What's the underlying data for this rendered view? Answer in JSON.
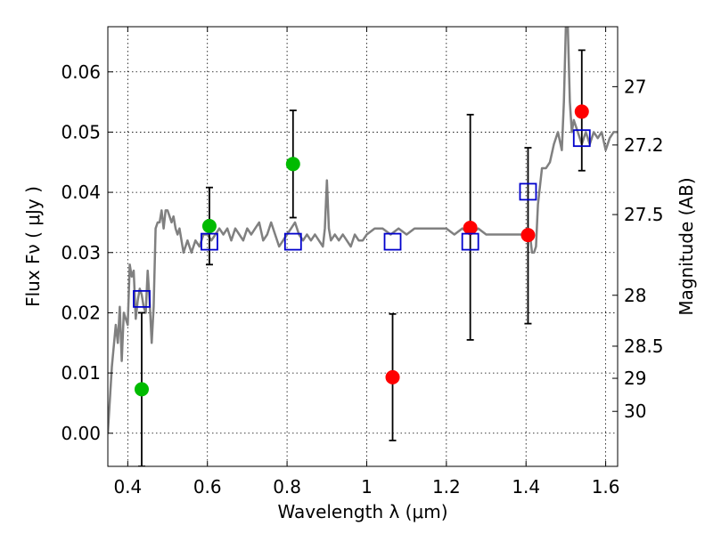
{
  "chart_data": {
    "type": "scatter",
    "xlabel": "Wavelength  λ (μm)",
    "ylabel": "Flux  Fν  ( μJy )",
    "ylabel_right": "Magnitude (AB)",
    "xlim": [
      0.35,
      1.63
    ],
    "ylim": [
      -0.0055,
      0.0675
    ],
    "x_ticks": [
      0.4,
      0.6,
      0.8,
      1.0,
      1.2,
      1.4,
      1.6
    ],
    "x_tick_labels": [
      "0.4",
      "0.6",
      "0.8",
      "1",
      "1.2",
      "1.4",
      "1.6"
    ],
    "y_ticks": [
      0.0,
      0.01,
      0.02,
      0.03,
      0.04,
      0.05,
      0.06
    ],
    "y_tick_labels": [
      "0.00",
      "0.01",
      "0.02",
      "0.03",
      "0.04",
      "0.05",
      "0.06"
    ],
    "right_axis_ticks": [
      {
        "mag": 27,
        "label": "27"
      },
      {
        "mag": 27.2,
        "label": "27.2"
      },
      {
        "mag": 27.5,
        "label": "27.5"
      },
      {
        "mag": 28,
        "label": "28"
      },
      {
        "mag": 28.5,
        "label": "28.5"
      },
      {
        "mag": 29,
        "label": "29"
      },
      {
        "mag": 30,
        "label": "30"
      }
    ],
    "grid": true,
    "colors": {
      "template": "#808080",
      "green": "#00bb00",
      "red": "#ff0000",
      "model": "#0000cc",
      "errorbar": "#000000"
    },
    "series": [
      {
        "kind": "template_spectrum",
        "style": "line",
        "x": [
          0.35,
          0.36,
          0.37,
          0.375,
          0.38,
          0.385,
          0.39,
          0.395,
          0.4,
          0.405,
          0.41,
          0.415,
          0.42,
          0.425,
          0.43,
          0.435,
          0.44,
          0.445,
          0.45,
          0.455,
          0.46,
          0.465,
          0.47,
          0.475,
          0.48,
          0.485,
          0.49,
          0.495,
          0.5,
          0.505,
          0.51,
          0.515,
          0.52,
          0.525,
          0.53,
          0.54,
          0.55,
          0.56,
          0.57,
          0.58,
          0.59,
          0.6,
          0.61,
          0.62,
          0.63,
          0.64,
          0.65,
          0.66,
          0.67,
          0.68,
          0.69,
          0.7,
          0.71,
          0.72,
          0.73,
          0.74,
          0.75,
          0.76,
          0.77,
          0.78,
          0.79,
          0.8,
          0.81,
          0.82,
          0.83,
          0.84,
          0.85,
          0.86,
          0.87,
          0.88,
          0.89,
          0.895,
          0.9,
          0.905,
          0.91,
          0.92,
          0.93,
          0.94,
          0.95,
          0.96,
          0.97,
          0.98,
          0.99,
          1.0,
          1.02,
          1.04,
          1.06,
          1.08,
          1.1,
          1.12,
          1.14,
          1.16,
          1.18,
          1.2,
          1.22,
          1.24,
          1.26,
          1.28,
          1.3,
          1.32,
          1.34,
          1.36,
          1.38,
          1.4,
          1.41,
          1.415,
          1.42,
          1.425,
          1.43,
          1.44,
          1.45,
          1.46,
          1.47,
          1.48,
          1.49,
          1.495,
          1.5,
          1.505,
          1.51,
          1.515,
          1.52,
          1.53,
          1.54,
          1.55,
          1.56,
          1.57,
          1.58,
          1.59,
          1.6,
          1.61,
          1.62,
          1.63
        ],
        "y": [
          0.0,
          0.011,
          0.018,
          0.015,
          0.021,
          0.012,
          0.02,
          0.019,
          0.018,
          0.028,
          0.026,
          0.027,
          0.019,
          0.022,
          0.024,
          0.023,
          0.021,
          0.02,
          0.027,
          0.022,
          0.015,
          0.021,
          0.034,
          0.035,
          0.035,
          0.037,
          0.034,
          0.037,
          0.037,
          0.036,
          0.035,
          0.036,
          0.034,
          0.033,
          0.034,
          0.03,
          0.032,
          0.03,
          0.032,
          0.031,
          0.033,
          0.033,
          0.032,
          0.033,
          0.034,
          0.033,
          0.034,
          0.032,
          0.034,
          0.033,
          0.032,
          0.034,
          0.033,
          0.034,
          0.035,
          0.032,
          0.033,
          0.035,
          0.033,
          0.031,
          0.032,
          0.033,
          0.034,
          0.035,
          0.033,
          0.032,
          0.033,
          0.032,
          0.033,
          0.032,
          0.031,
          0.034,
          0.042,
          0.034,
          0.032,
          0.033,
          0.032,
          0.033,
          0.032,
          0.031,
          0.033,
          0.032,
          0.032,
          0.033,
          0.034,
          0.034,
          0.033,
          0.034,
          0.033,
          0.034,
          0.034,
          0.034,
          0.034,
          0.034,
          0.033,
          0.034,
          0.033,
          0.034,
          0.033,
          0.033,
          0.033,
          0.033,
          0.033,
          0.033,
          0.033,
          0.03,
          0.03,
          0.031,
          0.038,
          0.044,
          0.044,
          0.045,
          0.048,
          0.05,
          0.047,
          0.055,
          0.0675,
          0.0675,
          0.055,
          0.05,
          0.052,
          0.05,
          0.048,
          0.05,
          0.048,
          0.05,
          0.049,
          0.05,
          0.047,
          0.049,
          0.05,
          0.05
        ]
      },
      {
        "kind": "observed_green",
        "style": "points",
        "x": [
          0.435,
          0.605,
          0.815
        ],
        "y": [
          0.0073,
          0.0344,
          0.0447
        ],
        "yerr_low": [
          0.0128,
          0.0064,
          0.0089
        ],
        "yerr_high": [
          0.0127,
          0.0064,
          0.0089
        ]
      },
      {
        "kind": "observed_red",
        "style": "points",
        "x": [
          1.065,
          1.26,
          1.405,
          1.54
        ],
        "y": [
          0.0093,
          0.0341,
          0.0329,
          0.0534
        ],
        "yerr_low": [
          0.0105,
          0.0186,
          0.0147,
          0.0098
        ],
        "yerr_high": [
          0.0105,
          0.0188,
          0.0145,
          0.0102
        ]
      },
      {
        "kind": "model_band",
        "style": "open_squares",
        "x": [
          0.435,
          0.605,
          0.815,
          1.065,
          1.26,
          1.405,
          1.54
        ],
        "y": [
          0.0223,
          0.0318,
          0.0318,
          0.0318,
          0.0318,
          0.0401,
          0.049
        ]
      }
    ]
  }
}
